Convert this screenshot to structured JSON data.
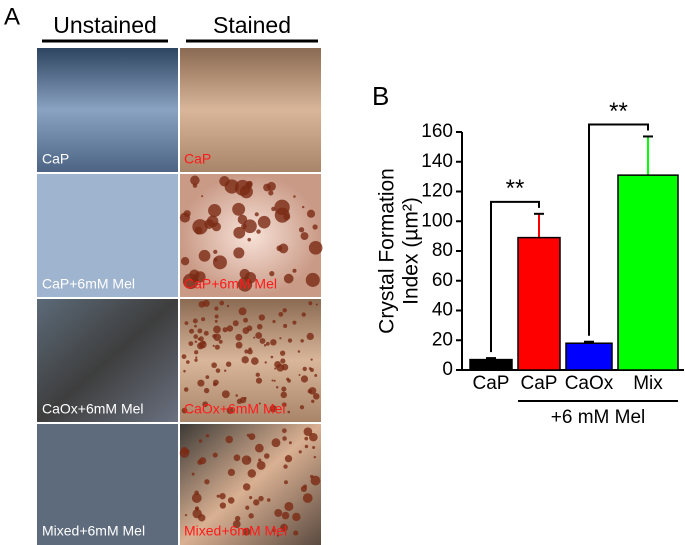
{
  "panel_a": {
    "label": "A",
    "columns": [
      "Unstained",
      "Stained"
    ],
    "rows": [
      [
        "CaP",
        "CaP"
      ],
      [
        "CaP+6mM Mel",
        "CaP+6mM Mel"
      ],
      [
        "CaOx+6mM Mel",
        "CaOx+6mM Mel"
      ],
      [
        "Mixed+6mM Mel",
        "Mixed+6mM Mel"
      ]
    ]
  },
  "chart_data": {
    "type": "bar",
    "panel_label": "B",
    "ylabel": [
      "Crystal Formation",
      "Index (µm²)"
    ],
    "categories": [
      "CaP",
      "CaP",
      "CaOx",
      "Mix"
    ],
    "values": [
      7,
      89,
      18,
      131
    ],
    "errors": [
      1,
      16,
      1,
      26
    ],
    "colors": [
      "#000000",
      "#ff0000",
      "#0000ff",
      "#00ff00"
    ],
    "ylim": [
      0,
      160
    ],
    "yticks": [
      0,
      20,
      40,
      60,
      80,
      100,
      120,
      140,
      160
    ],
    "significance": [
      {
        "label": "**",
        "categories": [
          0,
          1
        ]
      },
      {
        "label": "**",
        "categories": [
          2,
          3
        ]
      }
    ],
    "group_label": {
      "text": "+6 mM Mel",
      "categories": [
        1,
        3
      ]
    }
  }
}
